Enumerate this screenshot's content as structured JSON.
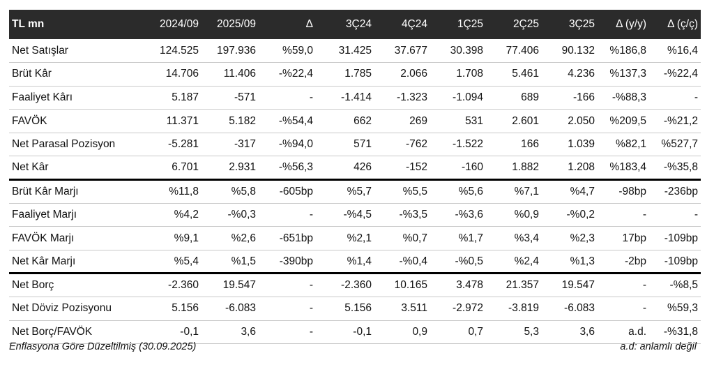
{
  "table": {
    "headers": [
      "TL mn",
      "2024/09",
      "2025/09",
      "Δ",
      "3Ç24",
      "4Ç24",
      "1Ç25",
      "2Ç25",
      "3Ç25",
      "Δ (y/y)",
      "Δ (ç/ç)"
    ],
    "rows": [
      [
        "Net Satışlar",
        "124.525",
        "197.936",
        "%59,0",
        "31.425",
        "37.677",
        "30.398",
        "77.406",
        "90.132",
        "%186,8",
        "%16,4"
      ],
      [
        "Brüt Kâr",
        "14.706",
        "11.406",
        "-%22,4",
        "1.785",
        "2.066",
        "1.708",
        "5.461",
        "4.236",
        "%137,3",
        "-%22,4"
      ],
      [
        "Faaliyet Kârı",
        "5.187",
        "-571",
        "-",
        "-1.414",
        "-1.323",
        "-1.094",
        "689",
        "-166",
        "-%88,3",
        "-"
      ],
      [
        "FAVÖK",
        "11.371",
        "5.182",
        "-%54,4",
        "662",
        "269",
        "531",
        "2.601",
        "2.050",
        "%209,5",
        "-%21,2"
      ],
      [
        "Net Parasal Pozisyon",
        "-5.281",
        "-317",
        "-%94,0",
        "571",
        "-762",
        "-1.522",
        "166",
        "1.039",
        "%82,1",
        "%527,7"
      ],
      [
        "Net Kâr",
        "6.701",
        "2.931",
        "-%56,3",
        "426",
        "-152",
        "-160",
        "1.882",
        "1.208",
        "%183,4",
        "-%35,8"
      ],
      [
        "Brüt Kâr Marjı",
        "%11,8",
        "%5,8",
        "-605bp",
        "%5,7",
        "%5,5",
        "%5,6",
        "%7,1",
        "%4,7",
        "-98bp",
        "-236bp"
      ],
      [
        "Faaliyet Marjı",
        "%4,2",
        "-%0,3",
        "-",
        "-%4,5",
        "-%3,5",
        "-%3,6",
        "%0,9",
        "-%0,2",
        "-",
        "-"
      ],
      [
        "FAVÖK Marjı",
        "%9,1",
        "%2,6",
        "-651bp",
        "%2,1",
        "%0,7",
        "%1,7",
        "%3,4",
        "%2,3",
        "17bp",
        "-109bp"
      ],
      [
        "Net Kâr Marjı",
        "%5,4",
        "%1,5",
        "-390bp",
        "%1,4",
        "-%0,4",
        "-%0,5",
        "%2,4",
        "%1,3",
        "-2bp",
        "-109bp"
      ],
      [
        "Net Borç",
        "-2.360",
        "19.547",
        "-",
        "-2.360",
        "10.165",
        "3.478",
        "21.357",
        "19.547",
        "-",
        "-%8,5"
      ],
      [
        "Net Döviz Pozisyonu",
        "5.156",
        "-6.083",
        "-",
        "5.156",
        "3.511",
        "-2.972",
        "-3.819",
        "-6.083",
        "-",
        "%59,3"
      ],
      [
        "Net Borç/FAVÖK",
        "-0,1",
        "3,6",
        "-",
        "-0,1",
        "0,9",
        "0,7",
        "5,3",
        "3,6",
        "a.d.",
        "-%31,8"
      ]
    ]
  },
  "footer": {
    "note_left": "Enflasyona Göre Düzeltilmiş (30.09.2025)",
    "note_right": "a.d: anlamlı değil"
  }
}
